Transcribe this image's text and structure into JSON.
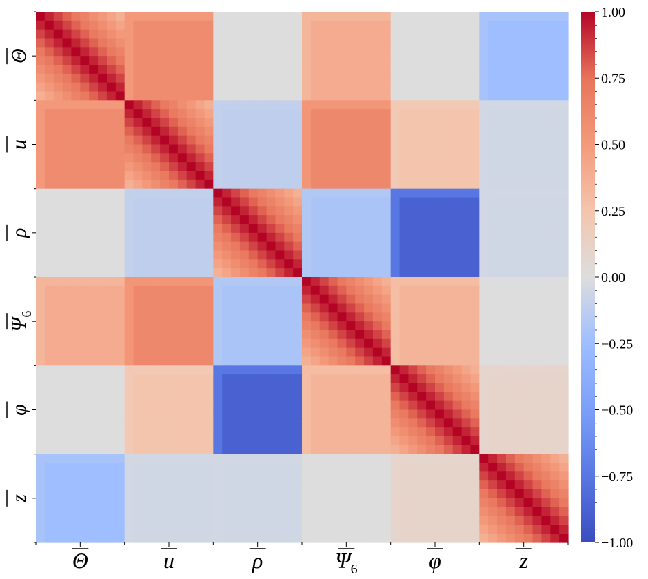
{
  "chart_data": {
    "type": "heatmap",
    "title": "",
    "xlabel": "",
    "ylabel": "",
    "colormap": "coolwarm",
    "vmin": -1.0,
    "vmax": 1.0,
    "cells_per_block": 10,
    "blocks": [
      {
        "tick": "Θ",
        "sub": ""
      },
      {
        "tick": "u",
        "sub": ""
      },
      {
        "tick": "ρ",
        "sub": ""
      },
      {
        "tick": "Ψ",
        "sub": "6"
      },
      {
        "tick": "φ",
        "sub": ""
      },
      {
        "tick": "z",
        "sub": ""
      }
    ],
    "block_correlation": [
      [
        0.95,
        0.6,
        0.0,
        0.4,
        0.0,
        -0.25
      ],
      [
        0.6,
        0.95,
        -0.12,
        0.62,
        0.25,
        -0.05
      ],
      [
        0.0,
        -0.12,
        0.95,
        -0.2,
        -0.88,
        -0.05
      ],
      [
        0.4,
        0.62,
        -0.2,
        0.95,
        0.35,
        0.0
      ],
      [
        0.0,
        0.25,
        -0.88,
        0.35,
        0.95,
        0.1
      ],
      [
        -0.25,
        -0.05,
        -0.05,
        0.0,
        0.1,
        0.95
      ]
    ],
    "colorbar_ticks": [
      "1.00",
      "0.75",
      "0.50",
      "0.25",
      "0.00",
      "−0.25",
      "−0.50",
      "−0.75",
      "−1.00"
    ],
    "colorbar_tick_values": [
      1.0,
      0.75,
      0.5,
      0.25,
      0.0,
      -0.25,
      -0.5,
      -0.75,
      -1.0
    ]
  }
}
